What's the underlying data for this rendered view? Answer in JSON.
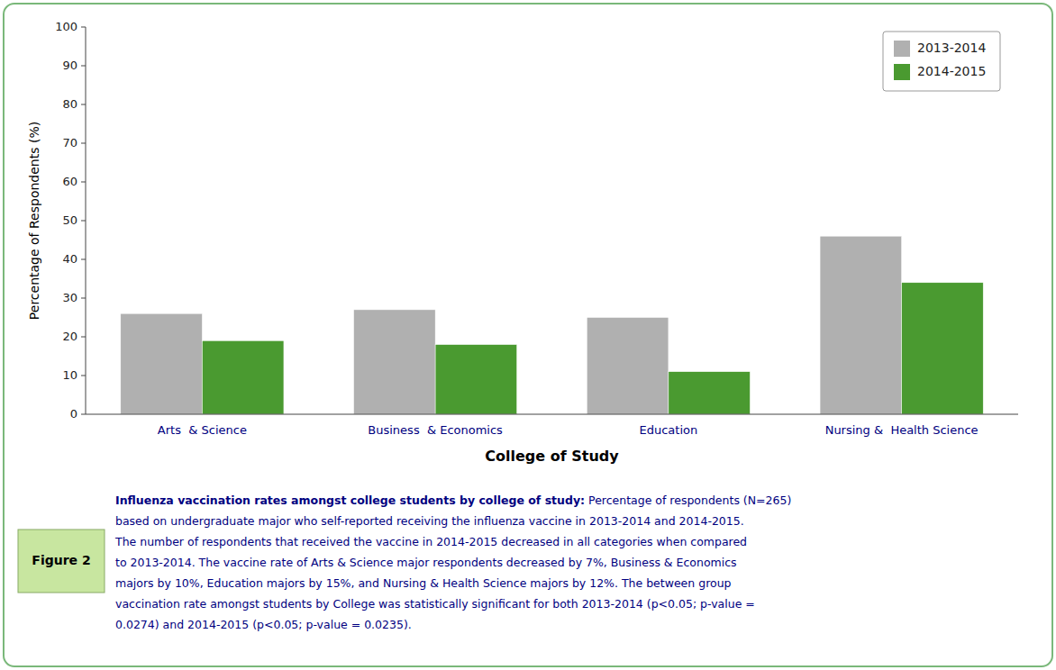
{
  "chart_data": {
    "type": "bar",
    "categories": [
      "Arts  & Science",
      "Business  & Economics",
      "Education",
      "Nursing &  Health Science"
    ],
    "series": [
      {
        "name": "2013-2014",
        "color": "#b0b0b0",
        "values": [
          26,
          27,
          25,
          46
        ]
      },
      {
        "name": "2014-2015",
        "color": "#4a9a30",
        "values": [
          19,
          18,
          11,
          34
        ]
      }
    ],
    "ylabel": "Percentage of Respondents (%)",
    "xlabel": "College of Study",
    "ylim": [
      0,
      100
    ],
    "yticks": [
      0,
      10,
      20,
      30,
      40,
      50,
      60,
      70,
      80,
      90,
      100
    ],
    "grid": false,
    "legend": "upper right",
    "annotations": [
      "Figure 2",
      "Influenza vaccination rates amongst college students by college of study:",
      " Percentage of respondents (N=265)",
      "based on undergraduate major who self-reported receiving the influenza vaccine in 2013-2014 and 2014-2015.",
      "The number of respondents that received the vaccine in 2014-2015 decreased in all categories when compared",
      "to 2013-2014. The vaccine rate of Arts & Science major respondents decreased by 7%, Business & Economics",
      "majors by 10%, Education majors by 15%, and Nursing & Health Science majors by 12%. The between group",
      "vaccination rate amongst students by College was statistically significant for both 2013-2014 (p<0.05; p-value =",
      "0.0274) and 2014-2015 (p<0.05; p-value = 0.0235)."
    ]
  }
}
